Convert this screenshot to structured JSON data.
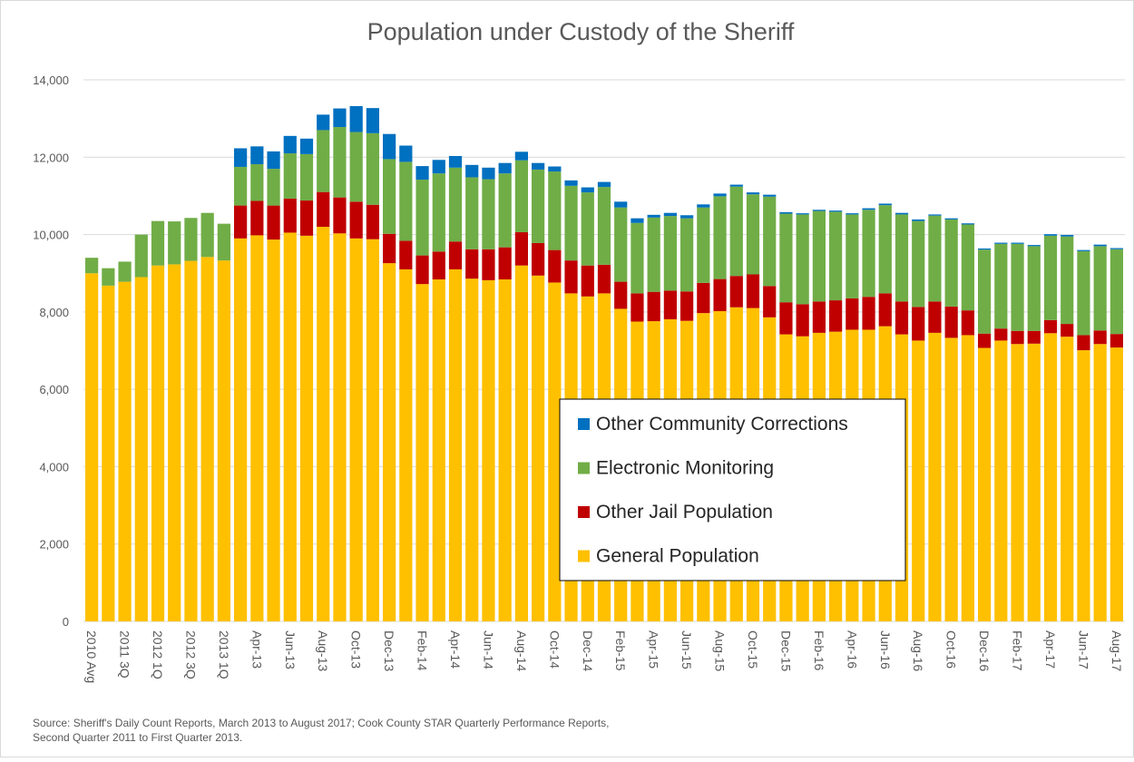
{
  "chart_data": {
    "type": "stacked_bar",
    "title": "Population under Custody of the Sheriff",
    "categories": [
      "2010 Avg",
      null,
      "2011 3Q",
      null,
      "2012 1Q",
      null,
      "2012 3Q",
      null,
      "2013 1Q",
      null,
      "Apr-13",
      null,
      "Jun-13",
      null,
      "Aug-13",
      null,
      "Oct-13",
      null,
      "Dec-13",
      null,
      "Feb-14",
      null,
      "Apr-14",
      null,
      "Jun-14",
      null,
      "Aug-14",
      null,
      "Oct-14",
      null,
      "Dec-14",
      null,
      "Feb-15",
      null,
      "Apr-15",
      null,
      "Jun-15",
      null,
      "Aug-15",
      null,
      "Oct-15",
      null,
      "Dec-15",
      null,
      "Feb-16",
      null,
      "Apr-16",
      null,
      "Jun-16",
      null,
      "Aug-16",
      null,
      "Oct-16",
      null,
      "Dec-16",
      null,
      "Feb-17",
      null,
      "Apr-17",
      null,
      "Jun-17",
      null,
      "Aug-17"
    ],
    "series": [
      {
        "name": "General Population",
        "color": "#FFC000",
        "values": [
          9000,
          8680,
          8780,
          8900,
          9200,
          9230,
          9320,
          9420,
          9330,
          9900,
          9980,
          9870,
          10050,
          9970,
          10200,
          10030,
          9900,
          9880,
          9260,
          9100,
          8720,
          8840,
          9100,
          8860,
          8820,
          8840,
          9200,
          8940,
          8760,
          8480,
          8400,
          8480,
          8080,
          7750,
          7760,
          7810,
          7770,
          7970,
          8020,
          8120,
          8100,
          7860,
          7420,
          7370,
          7460,
          7490,
          7540,
          7540,
          7630,
          7420,
          7260,
          7460,
          7330,
          7400,
          7070,
          7260,
          7170,
          7180,
          7450,
          7360,
          7010,
          7170,
          7080
        ]
      },
      {
        "name": "Other Jail Population",
        "color": "#C00000",
        "values": [
          0,
          0,
          0,
          0,
          0,
          0,
          0,
          0,
          0,
          850,
          890,
          880,
          880,
          910,
          900,
          930,
          950,
          890,
          760,
          740,
          740,
          720,
          720,
          760,
          800,
          830,
          860,
          840,
          840,
          850,
          800,
          740,
          700,
          730,
          760,
          740,
          760,
          780,
          830,
          810,
          870,
          810,
          830,
          830,
          810,
          810,
          810,
          850,
          850,
          850,
          870,
          810,
          810,
          640,
          370,
          310,
          340,
          330,
          340,
          330,
          390,
          350,
          350
        ]
      },
      {
        "name": "Electronic Monitoring",
        "color": "#70AD47",
        "values": [
          400,
          450,
          520,
          1100,
          1150,
          1110,
          1110,
          1140,
          950,
          1000,
          950,
          950,
          1170,
          1200,
          1600,
          1820,
          1800,
          1850,
          1930,
          2040,
          1960,
          2020,
          1910,
          1860,
          1810,
          1910,
          1860,
          1900,
          2030,
          1930,
          1890,
          2010,
          1920,
          1820,
          1920,
          1930,
          1890,
          1950,
          2140,
          2310,
          2070,
          2310,
          2290,
          2320,
          2340,
          2290,
          2170,
          2250,
          2280,
          2250,
          2220,
          2220,
          2250,
          2220,
          2170,
          2190,
          2250,
          2190,
          2180,
          2260,
          2170,
          2180,
          2190
        ]
      },
      {
        "name": "Other Community Corrections",
        "color": "#0070C0",
        "values": [
          0,
          0,
          0,
          0,
          0,
          0,
          0,
          0,
          0,
          480,
          460,
          450,
          450,
          400,
          400,
          480,
          670,
          650,
          650,
          420,
          350,
          350,
          300,
          320,
          300,
          270,
          220,
          170,
          130,
          140,
          130,
          130,
          150,
          120,
          70,
          80,
          80,
          80,
          70,
          50,
          50,
          50,
          40,
          30,
          30,
          30,
          30,
          40,
          40,
          40,
          40,
          30,
          30,
          30,
          30,
          30,
          30,
          30,
          40,
          40,
          30,
          40,
          30
        ]
      }
    ],
    "ylim": [
      0,
      14000
    ],
    "yticks": [
      0,
      {
        "value": 2000,
        "label": "2,000"
      },
      {
        "value": 4000,
        "label": "4,000"
      },
      {
        "value": 6000,
        "label": "6,000"
      },
      {
        "value": 8000,
        "label": "8,000"
      },
      {
        "value": 10000,
        "label": "10,000"
      },
      {
        "value": 12000,
        "label": "12,000"
      },
      {
        "value": 14000,
        "label": "14,000"
      }
    ],
    "grid": true,
    "legend": "center",
    "source": [
      "Source: Sheriff's Daily Count Reports, March 2013 to August 2017; Cook County STAR Quarterly Performance Reports,",
      "Second Quarter 2011 to First Quarter 2013."
    ]
  }
}
